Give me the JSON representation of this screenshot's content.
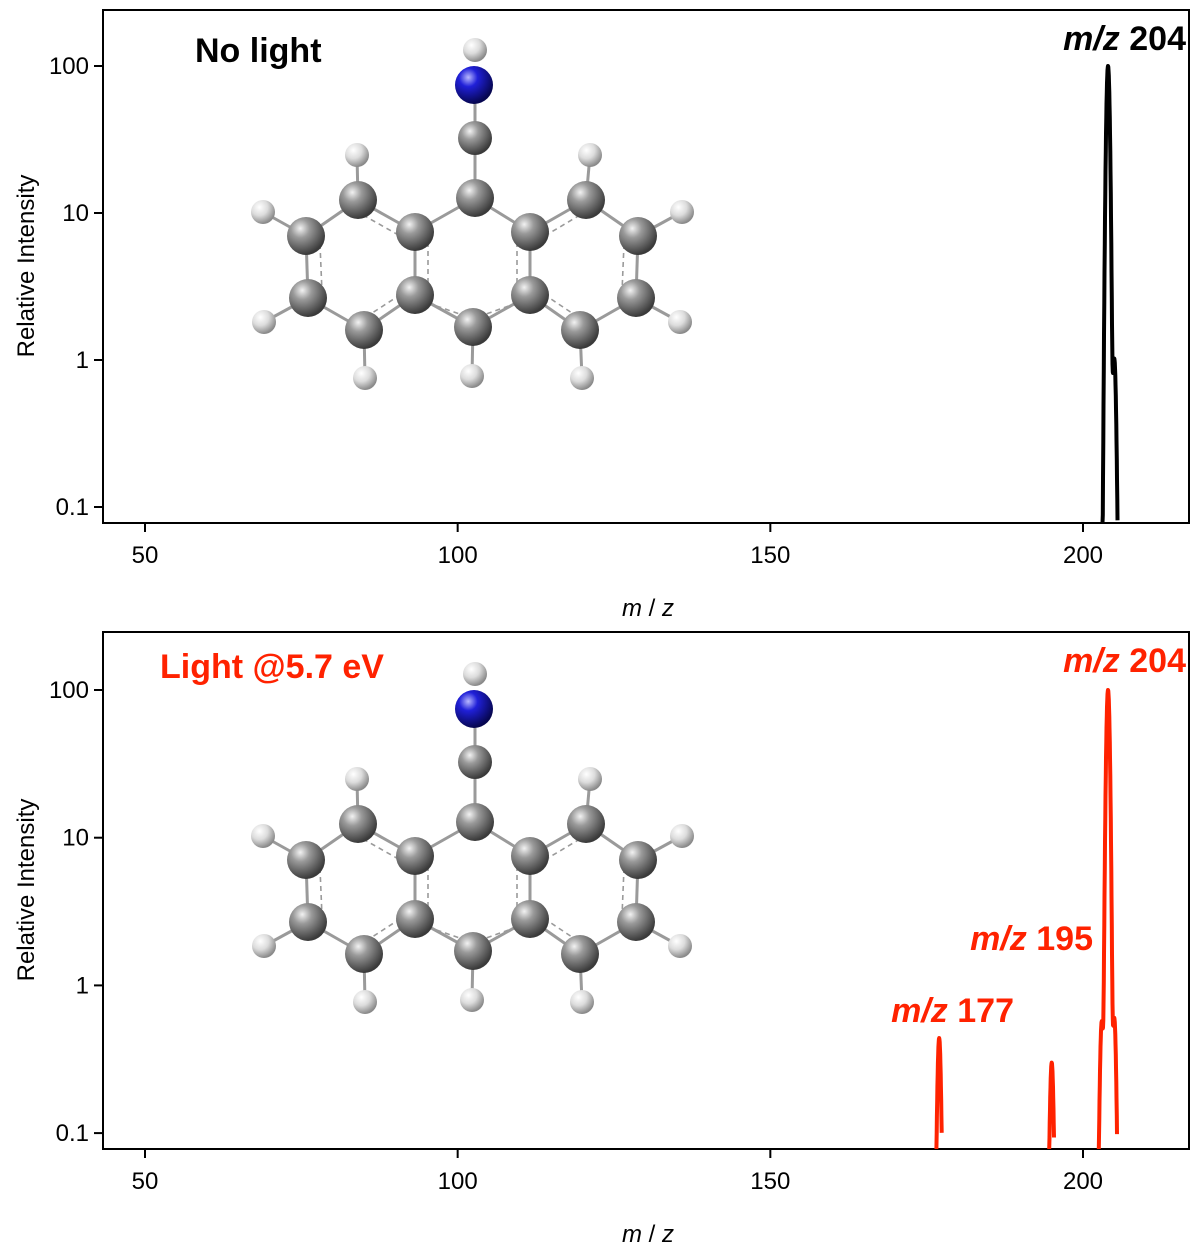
{
  "chart_data": [
    {
      "type": "line",
      "title": "No light",
      "xlabel_parts": [
        "m",
        " / ",
        "z"
      ],
      "ylabel": "Relative Intensity",
      "yscale": "log",
      "xlim": [
        43,
        217
      ],
      "ylim": [
        0.07,
        250
      ],
      "xticks": [
        50,
        100,
        150,
        200
      ],
      "yticks": [
        0.1,
        1,
        10,
        100
      ],
      "ytick_labels": [
        "0.1",
        "1",
        "10",
        "100"
      ],
      "color": "#000000",
      "peaks": [
        {
          "mz": 204,
          "intensity": 100
        },
        {
          "mz": 205,
          "intensity": 1
        }
      ],
      "annotations": [
        {
          "italic": "m/z",
          "value": " 204",
          "mz": 204
        }
      ]
    },
    {
      "type": "line",
      "title": "Light @5.7 eV",
      "xlabel_parts": [
        "m",
        " / ",
        "z"
      ],
      "ylabel": "Relative Intensity",
      "yscale": "log",
      "xlim": [
        43,
        217
      ],
      "ylim": [
        0.07,
        250
      ],
      "xticks": [
        50,
        100,
        150,
        200
      ],
      "yticks": [
        0.1,
        1,
        10,
        100
      ],
      "ytick_labels": [
        "0.1",
        "1",
        "10",
        "100"
      ],
      "color": "#ff2200",
      "peaks": [
        {
          "mz": 177,
          "intensity": 0.42
        },
        {
          "mz": 195,
          "intensity": 0.28
        },
        {
          "mz": 203,
          "intensity": 0.55
        },
        {
          "mz": 204,
          "intensity": 100
        },
        {
          "mz": 205,
          "intensity": 0.58
        }
      ],
      "annotations": [
        {
          "italic": "m/z",
          "value": " 177",
          "mz": 177
        },
        {
          "italic": "m/z",
          "value": " 195",
          "mz": 195
        },
        {
          "italic": "m/z",
          "value": " 204",
          "mz": 204
        }
      ]
    }
  ],
  "molecule": {
    "name": "9-anthracenyl ketenimine-like structure",
    "colors": {
      "carbon": "#7a7a7a",
      "hydrogen": "#d8d8d8",
      "nitrogen": "#1a1acc"
    }
  }
}
